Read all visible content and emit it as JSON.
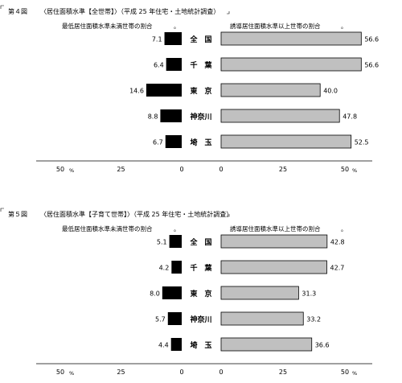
{
  "chart_data": [
    {
      "type": "bar",
      "figure_no": "第４図",
      "title": "〈居住面積水準【全世帯】〉（平成 25 年住宅・土地統計調査）",
      "left_caption": "最低居住面積水準未満世帯の割合",
      "right_caption": "誘導居住面積水準以上世帯の割合",
      "categories": [
        "全　国",
        "千　葉",
        "東　京",
        "神奈川",
        "埼　玉"
      ],
      "series": [
        {
          "name": "最低居住面積水準未満世帯の割合",
          "values": [
            7.1,
            6.4,
            14.6,
            8.8,
            6.7
          ],
          "labels": [
            "7.1",
            "6.4",
            "14.6",
            "8.8",
            "6.7"
          ]
        },
        {
          "name": "誘導居住面積水準以上世帯の割合",
          "values": [
            56.6,
            56.6,
            40.0,
            47.8,
            52.5
          ],
          "labels": [
            "56.6",
            "56.6",
            "40.0",
            "47.8",
            "52.5"
          ]
        }
      ],
      "left_ticks": [
        "50",
        "25",
        "0"
      ],
      "right_ticks": [
        "0",
        "25",
        "50"
      ],
      "unit": "%",
      "left_xlim": [
        50,
        0
      ],
      "right_xlim": [
        0,
        50
      ]
    },
    {
      "type": "bar",
      "figure_no": "第５図",
      "title": "〈居住面積水準【子育て世帯】〉（平成 25 年住宅・土地統計調査）",
      "left_caption": "最低居住面積水準未満世帯の割合",
      "right_caption": "誘導居住面積水準以上世帯の割合",
      "categories": [
        "全　国",
        "千　葉",
        "東　京",
        "神奈川",
        "埼　玉"
      ],
      "series": [
        {
          "name": "最低居住面積水準未満世帯の割合",
          "values": [
            5.1,
            4.2,
            8.0,
            5.7,
            4.4
          ],
          "labels": [
            "5.1",
            "4.2",
            "8.0",
            "5.7",
            "4.4"
          ]
        },
        {
          "name": "誘導居住面積水準以上世帯の割合",
          "values": [
            42.8,
            42.7,
            31.3,
            33.2,
            36.6
          ],
          "labels": [
            "42.8",
            "42.7",
            "31.3",
            "33.2",
            "36.6"
          ]
        }
      ],
      "left_ticks": [
        "50",
        "25",
        "0"
      ],
      "right_ticks": [
        "0",
        "25",
        "50"
      ],
      "unit": "%",
      "left_xlim": [
        50,
        0
      ],
      "right_xlim": [
        0,
        50
      ]
    }
  ],
  "colors": {
    "left_bar": "#000000",
    "right_bar": "#c0c0c0",
    "axis": "#000000"
  }
}
